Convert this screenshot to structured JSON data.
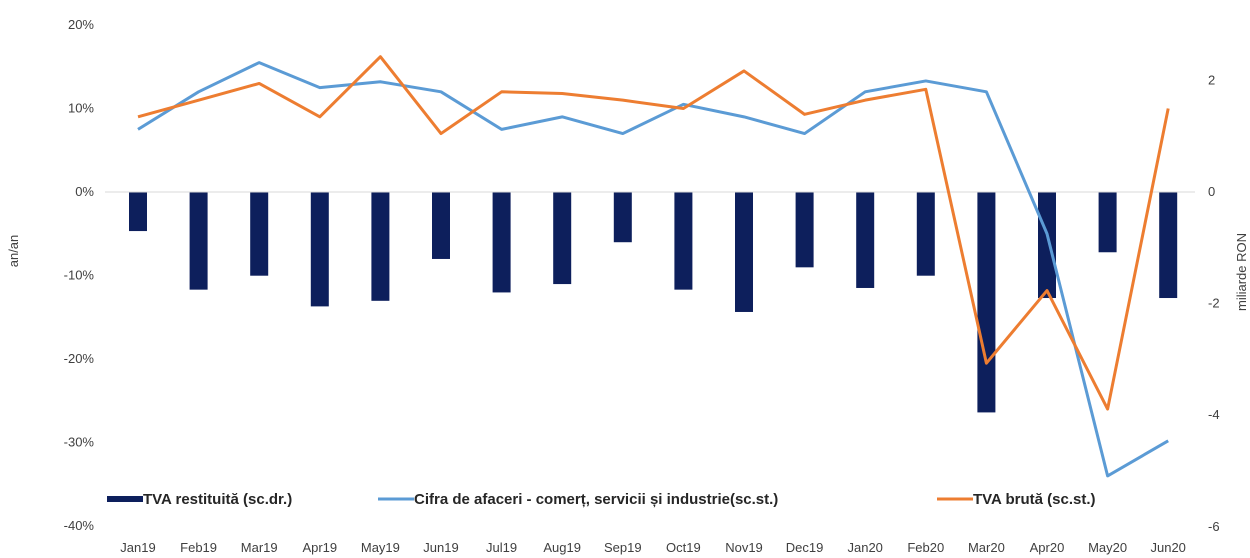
{
  "chart_data": {
    "type": "bar+line",
    "title": "",
    "categories": [
      "Jan19",
      "Feb19",
      "Mar19",
      "Apr19",
      "May19",
      "Jun19",
      "Jul19",
      "Aug19",
      "Sep19",
      "Oct19",
      "Nov19",
      "Dec19",
      "Jan20",
      "Feb20",
      "Mar20",
      "Apr20",
      "May20",
      "Jun20"
    ],
    "left_axis": {
      "label": "an/an",
      "min": -40,
      "max": 20,
      "step": 10,
      "tick_labels": [
        "20%",
        "10%",
        "0%",
        "-10%",
        "-20%",
        "-30%",
        "-40%"
      ]
    },
    "right_axis": {
      "label": "miliarde RON",
      "min": -6,
      "max": 3,
      "step": 2,
      "tick_labels": [
        "2",
        "0",
        "-2",
        "-4",
        "-6"
      ]
    },
    "series": [
      {
        "name": "TVA restituită (sc.dr.)",
        "kind": "bar",
        "axis": "right",
        "color": "#0d1f5c",
        "values": [
          -0.7,
          -1.75,
          -1.5,
          -2.05,
          -1.95,
          -1.2,
          -1.8,
          -1.65,
          -0.9,
          -1.75,
          -2.15,
          -1.35,
          -1.72,
          -1.5,
          -3.95,
          -1.9,
          -1.08,
          -1.9
        ]
      },
      {
        "name": "Cifra de afaceri - comerț, servicii și industrie(sc.st.)",
        "kind": "line",
        "axis": "left",
        "color": "#5b9bd5",
        "values": [
          7.5,
          12,
          15.5,
          12.5,
          13.2,
          12,
          7.5,
          9,
          7,
          10.5,
          9,
          7,
          12,
          13.3,
          12,
          -5,
          -34,
          -29.8
        ]
      },
      {
        "name": "TVA brută (sc.st.)",
        "kind": "line",
        "axis": "left",
        "color": "#ed7d31",
        "values": [
          9,
          11,
          13,
          9,
          16.2,
          7,
          12,
          11.8,
          11,
          10,
          14.5,
          9.3,
          11,
          12.3,
          -20.5,
          -11.8,
          -26,
          10
        ]
      }
    ],
    "legend_position": "bottom",
    "grid": false
  }
}
